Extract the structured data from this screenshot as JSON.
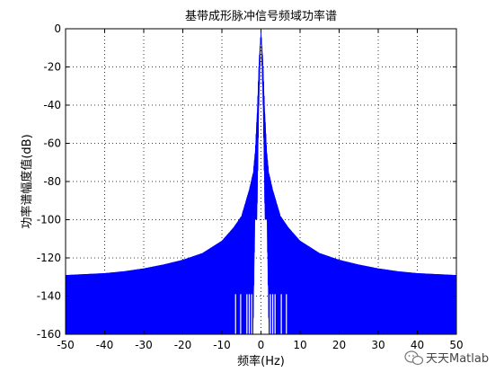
{
  "chart_data": {
    "type": "line",
    "title": "基带成形脉冲信号频域功率谱",
    "xlabel": "频率(Hz)",
    "ylabel": "功率谱幅度值(dB)",
    "xlim": [
      -50,
      50
    ],
    "ylim": [
      -160,
      0
    ],
    "xticks": [
      -50,
      -40,
      -30,
      -20,
      -10,
      0,
      10,
      20,
      30,
      40,
      50
    ],
    "yticks": [
      0,
      -20,
      -40,
      -60,
      -80,
      -100,
      -120,
      -140,
      -160
    ],
    "xtick_labels": [
      "-50",
      "-40",
      "-30",
      "-20",
      "-10",
      "0",
      "10",
      "20",
      "30",
      "40",
      "50"
    ],
    "ytick_labels": [
      "0",
      "-20",
      "-40",
      "-60",
      "-80",
      "-100",
      "-120",
      "-140",
      "-160"
    ],
    "grid": true,
    "grid_style": "dotted",
    "series": [
      {
        "color": "#0000ff",
        "envelope_x": [
          -50,
          -45,
          -40,
          -35,
          -30,
          -25,
          -20,
          -15,
          -10,
          -7,
          -5,
          -4,
          -3,
          -2,
          -1.5,
          -1,
          -0.5,
          0,
          0.5,
          1,
          1.5,
          2,
          3,
          4,
          5,
          7,
          10,
          15,
          20,
          25,
          30,
          35,
          40,
          45,
          50
        ],
        "upper_db": [
          -129,
          -128.5,
          -128,
          -127,
          -125.5,
          -123.5,
          -121,
          -117.5,
          -111,
          -104,
          -98,
          -91,
          -84,
          -75,
          -64,
          -43,
          -16,
          0,
          -16,
          -43,
          -64,
          -75,
          -84,
          -91,
          -98,
          -104,
          -111,
          -117.5,
          -121,
          -123.5,
          -125.5,
          -127,
          -128,
          -128.5,
          -129
        ],
        "lower_db": [
          -160,
          -160,
          -160,
          -160,
          -160,
          -160,
          -160,
          -160,
          -160,
          -160,
          -160,
          -160,
          -160,
          -160,
          -100,
          -100,
          -40,
          -3,
          -40,
          -100,
          -100,
          -160,
          -160,
          -160,
          -160,
          -160,
          -160,
          -160,
          -160,
          -160,
          -160,
          -160,
          -160,
          -160,
          -160
        ]
      }
    ]
  },
  "watermark": {
    "text": "天天Matlab",
    "icon": "wechat-icon"
  }
}
